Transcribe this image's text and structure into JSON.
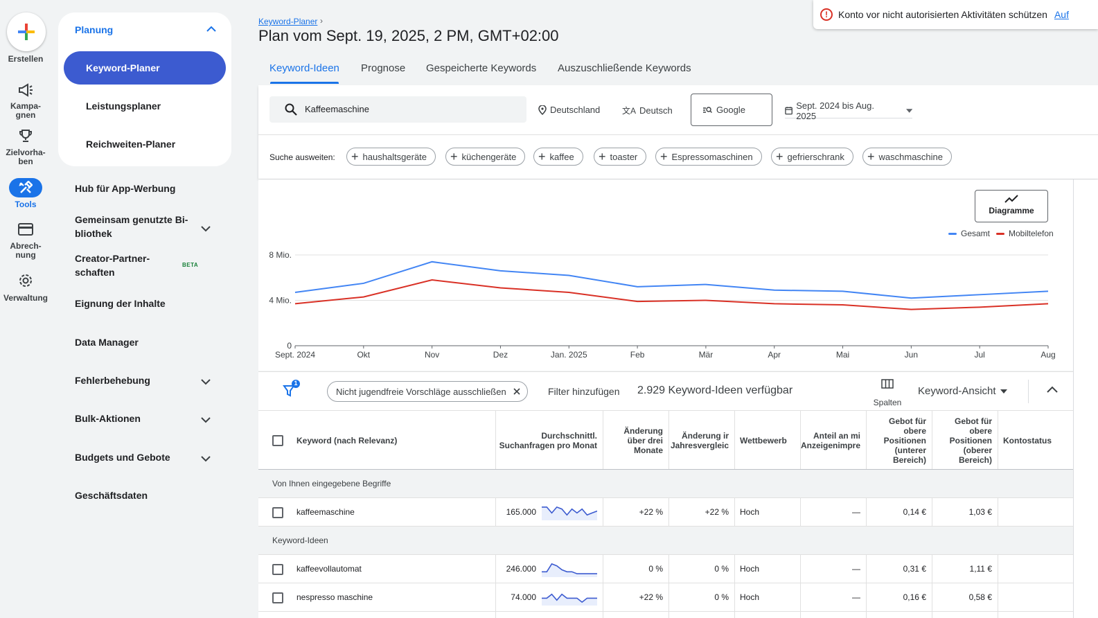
{
  "rail": {
    "create_label": "Erstellen",
    "campaigns_label": "Kampa-\ngnen",
    "goals_label": "Zielvorha-\nben",
    "tools_label": "Tools",
    "billing_label": "Abrech-\nnung",
    "admin_label": "Verwaltung"
  },
  "nav": {
    "section_title": "Planung",
    "active_item": "Keyword-Planer",
    "sub_items": [
      "Leistungsplaner",
      "Reichweiten-Planer"
    ],
    "items": [
      {
        "label": "Hub für App-Werbung"
      },
      {
        "label": "Gemeinsam genutzte Bi-\nbliothek"
      },
      {
        "label": "Creator-Partner-\nschaften"
      },
      {
        "label": "Eignung der Inhalte"
      },
      {
        "label": "Data Manager"
      },
      {
        "label": "Fehlerbehebung"
      },
      {
        "label": "Bulk-Aktionen"
      },
      {
        "label": "Budgets und Gebote"
      },
      {
        "label": "Geschäftsdaten"
      }
    ],
    "beta_label": "BETA"
  },
  "header": {
    "breadcrumb": "Keyword-Planer",
    "title": "Plan vom Sept. 19, 2025, 2 PM, GMT+02:00",
    "alert_text": "Konto vor nicht autorisierten Aktivitäten schützen",
    "alert_link": "Auf"
  },
  "tabs": [
    "Keyword-Ideen",
    "Prognose",
    "Gespeicherte Keywords",
    "Auszuschließende Keywords"
  ],
  "search": {
    "query": "Kaffeemaschine",
    "location": "Deutschland",
    "language": "Deutsch",
    "network": "Google",
    "date_range": "Sept. 2024 bis Aug. 2025",
    "expand_label": "Suche ausweiten:",
    "chips": [
      "haushaltsgeräte",
      "küchengeräte",
      "kaffee",
      "toaster",
      "Espressomaschinen",
      "gefrierschrank",
      "waschmaschine"
    ]
  },
  "chart_controls": {
    "diagram_label": "Diagramme"
  },
  "chart_data": {
    "type": "line",
    "x": [
      "Sept. 2024",
      "Okt",
      "Nov",
      "Dez",
      "Jan. 2025",
      "Feb",
      "Mär",
      "Apr",
      "Mai",
      "Jun",
      "Jul",
      "Aug"
    ],
    "y_ticks": [
      "0",
      "4 Mio.",
      "8 Mio."
    ],
    "ylim": [
      0,
      8000000
    ],
    "series": [
      {
        "name": "Gesamt",
        "color": "#4285f4",
        "values": [
          4700000,
          5500000,
          7400000,
          6600000,
          6200000,
          5200000,
          5400000,
          4900000,
          4800000,
          4200000,
          4500000,
          4800000
        ]
      },
      {
        "name": "Mobiltelefon",
        "color": "#d93025",
        "values": [
          3700000,
          4300000,
          5800000,
          5100000,
          4700000,
          3900000,
          4000000,
          3700000,
          3600000,
          3200000,
          3400000,
          3700000
        ]
      }
    ]
  },
  "filter_bar": {
    "filter_badge": "1",
    "filter_chip": "Nicht jugendfreie Vorschläge ausschließen",
    "add_filter": "Filter hinzufügen",
    "ideas_count": "2.929 Keyword-Ideen verfügbar",
    "columns_label": "Spalten",
    "view_label": "Keyword-Ansicht"
  },
  "table": {
    "headers": {
      "keyword": "Keyword (nach Relevanz)",
      "avg": "Durchschnittl.\nSuchanfragen pro Monat",
      "three_month": "Änderung\nüber drei\nMonate",
      "yoy": "Änderung ir\nJahresvergleic",
      "competition": "Wettbewerb",
      "impr_share": "Anteil an mi\nAnzeigenimpre",
      "bid_low": "Gebot für\nobere\nPositionen\n(unterer\nBereich)",
      "bid_high": "Gebot für\nobere\nPositionen\n(oberer\nBereich)",
      "status": "Kontostatus"
    },
    "group_entered": "Von Ihnen eingegebene Begriffe",
    "group_ideas": "Keyword-Ideen",
    "entered_rows": [
      {
        "keyword": "kaffeemaschine",
        "avg": "165.000",
        "three_month": "+22 %",
        "yoy": "+22 %",
        "competition": "Hoch",
        "impr_share": "—",
        "bid_low": "0,14 €",
        "bid_high": "1,03 €",
        "trend": [
          6,
          6,
          3,
          6,
          5,
          2,
          5,
          3,
          5,
          2,
          3,
          4
        ]
      }
    ],
    "idea_rows": [
      {
        "keyword": "kaffeevollautomat",
        "avg": "246.000",
        "three_month": "0 %",
        "yoy": "0 %",
        "competition": "Hoch",
        "impr_share": "—",
        "bid_low": "0,31 €",
        "bid_high": "1,11 €",
        "trend": [
          2,
          2,
          6,
          5,
          3,
          2,
          2,
          1,
          1,
          1,
          1,
          1
        ]
      },
      {
        "keyword": "nespresso maschine",
        "avg": "74.000",
        "three_month": "+22 %",
        "yoy": "0 %",
        "competition": "Hoch",
        "impr_share": "—",
        "bid_low": "0,16 €",
        "bid_high": "0,58 €",
        "trend": [
          3,
          3,
          5,
          2,
          5,
          3,
          3,
          3,
          1,
          3,
          3,
          3
        ]
      }
    ]
  }
}
